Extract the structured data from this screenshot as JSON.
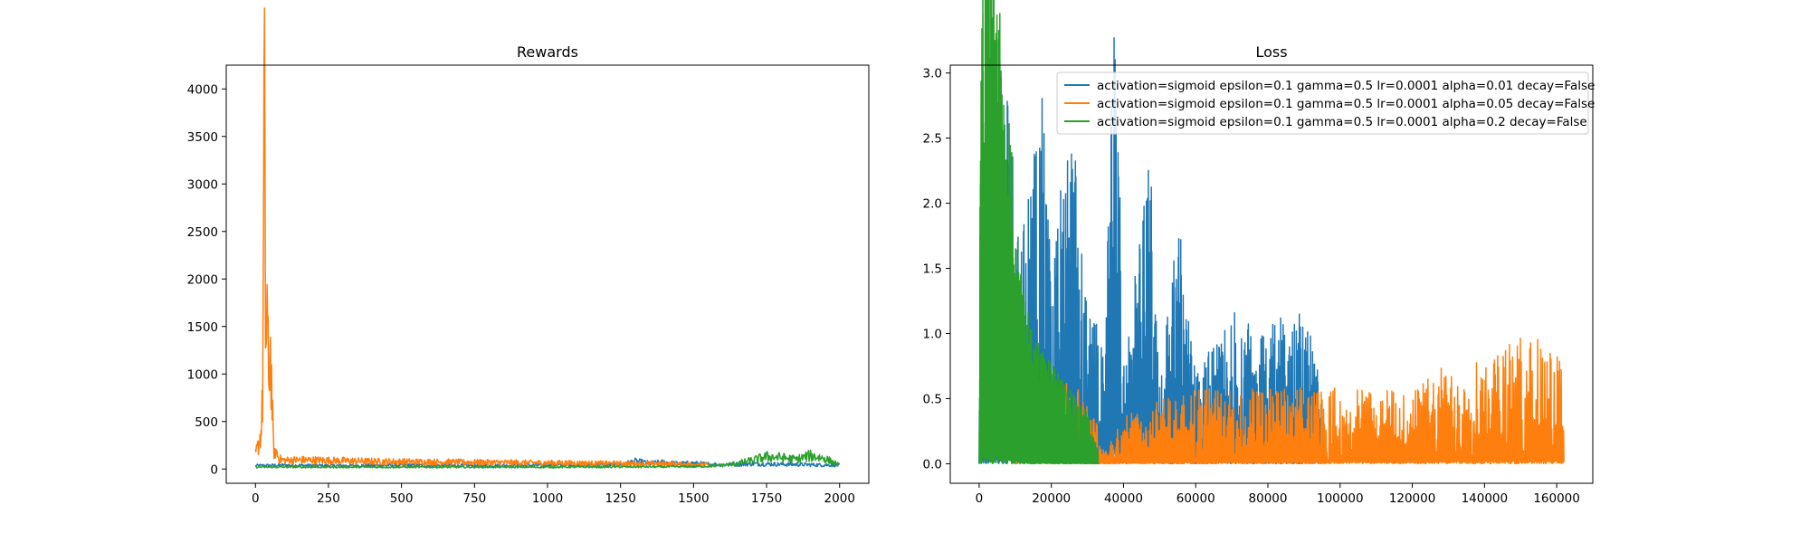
{
  "chart_data": [
    {
      "type": "line",
      "title": "Rewards",
      "xlabel": "",
      "ylabel": "",
      "xlim": [
        -100,
        2100
      ],
      "ylim": [
        -150,
        4250
      ],
      "xticks": [
        0,
        250,
        500,
        750,
        1000,
        1250,
        1500,
        1750,
        2000
      ],
      "yticks": [
        0,
        500,
        1000,
        1500,
        2000,
        2500,
        3000,
        3500,
        4000
      ],
      "legend": "none",
      "series": [
        {
          "name": "activation=sigmoid epsilon=0.1 gamma=0.5 lr=0.0001 alpha=0.01 decay=False",
          "color": "#1f77b4",
          "x": [
            0,
            100,
            250,
            500,
            750,
            1000,
            1250,
            1300,
            1350,
            1400,
            1450,
            1500,
            1550,
            1600,
            1700,
            1800,
            1900,
            2000
          ],
          "y": [
            35,
            40,
            35,
            40,
            35,
            40,
            45,
            80,
            60,
            70,
            55,
            60,
            50,
            45,
            55,
            50,
            45,
            40
          ]
        },
        {
          "name": "activation=sigmoid epsilon=0.1 gamma=0.5 lr=0.0001 alpha=0.05 decay=False",
          "color": "#ff7f0e",
          "x": [
            0,
            10,
            20,
            25,
            30,
            35,
            40,
            45,
            50,
            55,
            60,
            65,
            70,
            80,
            100,
            150,
            250,
            400,
            600,
            800,
            1000,
            1200,
            1400,
            1500,
            1550
          ],
          "y": [
            150,
            250,
            400,
            800,
            4050,
            1200,
            1800,
            700,
            1400,
            900,
            350,
            120,
            200,
            110,
            90,
            95,
            90,
            80,
            75,
            70,
            65,
            60,
            55,
            50,
            45
          ]
        },
        {
          "name": "activation=sigmoid epsilon=0.1 gamma=0.5 lr=0.0001 alpha=0.2 decay=False",
          "color": "#2ca02c",
          "x": [
            0,
            100,
            500,
            1000,
            1500,
            1550,
            1600,
            1650,
            1700,
            1750,
            1800,
            1850,
            1900,
            1950,
            2000
          ],
          "y": [
            20,
            20,
            20,
            20,
            25,
            30,
            40,
            60,
            90,
            130,
            120,
            100,
            140,
            110,
            40
          ]
        }
      ]
    },
    {
      "type": "line",
      "title": "Loss",
      "xlabel": "",
      "ylabel": "",
      "xlim": [
        -8000,
        170000
      ],
      "ylim": [
        -0.15,
        3.06
      ],
      "xticks": [
        0,
        20000,
        40000,
        60000,
        80000,
        100000,
        120000,
        140000,
        160000
      ],
      "yticks": [
        0.0,
        0.5,
        1.0,
        1.5,
        2.0,
        2.5,
        3.0
      ],
      "legend": "top-right",
      "series": [
        {
          "name": "activation=sigmoid epsilon=0.1 gamma=0.5 lr=0.0001 alpha=0.01 decay=False",
          "color": "#1f77b4",
          "x": [
            0,
            5000,
            7500,
            10000,
            12000,
            17500,
            20000,
            25000,
            30000,
            35000,
            37500,
            40000,
            47500,
            50000,
            55000,
            60000,
            70000,
            80000,
            90000,
            95000
          ],
          "y": [
            0.3,
            1.2,
            1.8,
            1.0,
            0.9,
            1.7,
            0.7,
            1.5,
            0.6,
            0.5,
            2.3,
            0.4,
            1.25,
            0.35,
            1.0,
            0.35,
            0.6,
            0.55,
            0.62,
            0.3
          ]
        },
        {
          "name": "activation=sigmoid epsilon=0.1 gamma=0.5 lr=0.0001 alpha=0.05 decay=False",
          "color": "#ff7f0e",
          "x": [
            10000,
            20000,
            30000,
            35000,
            40000,
            50000,
            60000,
            80000,
            100000,
            120000,
            130000,
            140000,
            150000,
            155000,
            160000,
            162000
          ],
          "y": [
            0.3,
            0.35,
            0.3,
            0.05,
            0.2,
            0.25,
            0.3,
            0.3,
            0.3,
            0.3,
            0.4,
            0.45,
            0.5,
            0.5,
            0.5,
            0.45
          ]
        },
        {
          "name": "activation=sigmoid epsilon=0.1 gamma=0.5 lr=0.0001 alpha=0.2 decay=False",
          "color": "#2ca02c",
          "x": [
            0,
            500,
            1000,
            2000,
            3000,
            4000,
            5000,
            6000,
            8000,
            10000,
            12000,
            15000,
            20000,
            25000,
            30000,
            33000
          ],
          "y": [
            0.0,
            2.2,
            2.6,
            2.85,
            2.92,
            2.7,
            2.55,
            2.3,
            1.6,
            1.0,
            0.7,
            0.5,
            0.4,
            0.3,
            0.2,
            0.05
          ]
        }
      ]
    }
  ]
}
